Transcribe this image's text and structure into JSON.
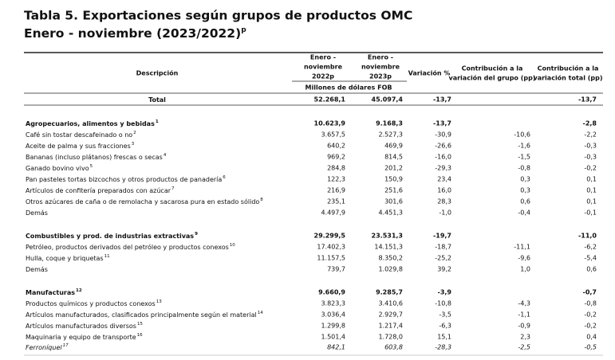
{
  "header": {
    "title": "Tabla 5. Exportaciones según grupos de productos OMC",
    "subtitle": "Enero - noviembre (2023/2022)",
    "subtitle_note": "p"
  },
  "table": {
    "columns": [
      {
        "lines": [
          "Descripción"
        ]
      },
      {
        "lines": [
          "Enero -",
          "noviembre",
          "2022p"
        ]
      },
      {
        "lines": [
          "Enero -",
          "noviembre",
          "2023p"
        ]
      },
      {
        "lines": [
          "Variación %"
        ]
      },
      {
        "lines": [
          "Contribución a la",
          "variación del grupo (pp)"
        ]
      },
      {
        "lines": [
          "Contribución a la",
          "variación total (pp)"
        ]
      }
    ],
    "unit": "Millones de dólares FOB",
    "total": {
      "label": "Total",
      "values": [
        "52.268,1",
        "45.097,4",
        "-13,7",
        null,
        "-13,7"
      ]
    },
    "groups": [
      {
        "header": {
          "label": "Agropecuarios, alimentos y bebidas",
          "note": "1",
          "values": [
            "10.623,9",
            "9.168,3",
            "-13,7",
            null,
            "-2,8"
          ]
        },
        "items": [
          {
            "label": "Café sin tostar descafeinado o no",
            "note": "2",
            "values": [
              "3.657,5",
              "2.527,3",
              "-30,9",
              "-10,6",
              "-2,2"
            ]
          },
          {
            "label": "Aceite de palma y sus fracciones",
            "note": "3",
            "values": [
              "640,2",
              "469,9",
              "-26,6",
              "-1,6",
              "-0,3"
            ]
          },
          {
            "label": "Bananas (incluso plátanos) frescas o secas",
            "note": "4",
            "values": [
              "969,2",
              "814,5",
              "-16,0",
              "-1,5",
              "-0,3"
            ]
          },
          {
            "label": "Ganado bovino vivo",
            "note": "5",
            "values": [
              "284,8",
              "201,2",
              "-29,3",
              "-0,8",
              "-0,2"
            ]
          },
          {
            "label": "Pan pasteles tortas bizcochos y otros productos de panadería",
            "note": "6",
            "values": [
              "122,3",
              "150,9",
              "23,4",
              "0,3",
              "0,1"
            ]
          },
          {
            "label": "Artículos de confitería preparados con azúcar",
            "note": "7",
            "values": [
              "216,9",
              "251,6",
              "16,0",
              "0,3",
              "0,1"
            ]
          },
          {
            "label": "Otros azúcares de caña o de remolacha y sacarosa pura en estado sólido",
            "note": "8",
            "values": [
              "235,1",
              "301,6",
              "28,3",
              "0,6",
              "0,1"
            ]
          },
          {
            "label": "Demás",
            "values": [
              "4.497,9",
              "4.451,3",
              "-1,0",
              "-0,4",
              "-0,1"
            ]
          }
        ]
      },
      {
        "header": {
          "label": "Combustibles y prod. de industrias extractivas",
          "note": "9",
          "values": [
            "29.299,5",
            "23.531,3",
            "-19,7",
            null,
            "-11,0"
          ]
        },
        "items": [
          {
            "label": "Petróleo, productos derivados del petróleo y productos conexos",
            "note": "10",
            "values": [
              "17.402,3",
              "14.151,3",
              "-18,7",
              "-11,1",
              "-6,2"
            ]
          },
          {
            "label": "Hulla, coque y briquetas",
            "note": "11",
            "values": [
              "11.157,5",
              "8.350,2",
              "-25,2",
              "-9,6",
              "-5,4"
            ]
          },
          {
            "label": "Demás",
            "values": [
              "739,7",
              "1.029,8",
              "39,2",
              "1,0",
              "0,6"
            ]
          }
        ]
      },
      {
        "header": {
          "label": "Manufacturas",
          "note": "12",
          "values": [
            "9.660,9",
            "9.285,7",
            "-3,9",
            null,
            "-0,7"
          ]
        },
        "items": [
          {
            "label": "Productos químicos y productos conexos",
            "note": "13",
            "values": [
              "3.823,3",
              "3.410,6",
              "-10,8",
              "-4,3",
              "-0,8"
            ]
          },
          {
            "label": "Artículos manufacturados, clasificados principalmente según el material",
            "note": "14",
            "values": [
              "3.036,4",
              "2.929,7",
              "-3,5",
              "-1,1",
              "-0,2"
            ]
          },
          {
            "label": "Artículos manufacturados diversos",
            "note": "15",
            "values": [
              "1.299,8",
              "1.217,4",
              "-6,3",
              "-0,9",
              "-0,2"
            ]
          },
          {
            "label": "Maquinaria y equipo de transporte",
            "note": "16",
            "values": [
              "1.501,4",
              "1.728,0",
              "15,1",
              "2,3",
              "0,4"
            ]
          }
        ],
        "detail": [
          {
            "label": "Ferroníquel",
            "note": "17",
            "values": [
              "842,1",
              "603,8",
              "-28,3",
              "-2,5",
              "-0,5"
            ]
          }
        ]
      }
    ]
  }
}
